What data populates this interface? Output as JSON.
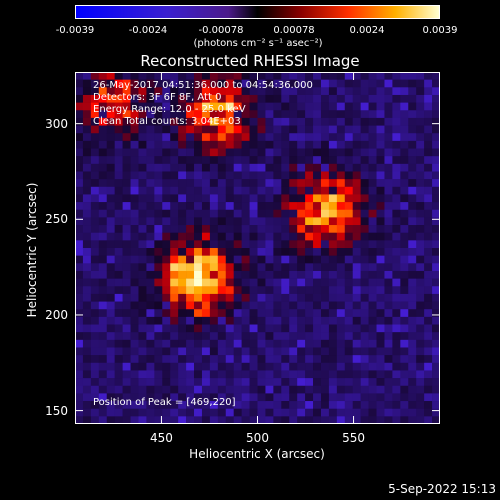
{
  "colorbar": {
    "ticks": [
      "-0.0039",
      "-0.0024",
      "-0.00078",
      "0.00078",
      "0.0024",
      "0.0039"
    ],
    "units": "(photons cm⁻² s⁻¹ asec⁻²)",
    "min": -0.0039,
    "max": 0.0039
  },
  "chart_data": {
    "type": "heatmap",
    "title": "Reconstructed RHESSI Image",
    "xlabel": "Heliocentric X (arcsec)",
    "ylabel": "Heliocentric Y (arcsec)",
    "xlim": [
      405,
      595
    ],
    "ylim": [
      143,
      327
    ],
    "xticks": [
      450,
      500,
      550
    ],
    "yticks": [
      150,
      200,
      250,
      300
    ],
    "sources": [
      {
        "x": 469,
        "y": 220,
        "peak": 1.0
      },
      {
        "x": 535,
        "y": 255,
        "peak": 0.8
      },
      {
        "x": 480,
        "y": 305,
        "peak": 0.75
      },
      {
        "x": 425,
        "y": 310,
        "peak": 0.55
      }
    ],
    "annotations": {
      "line1": "26-May-2017 04:51:36.000 to 04:54:36.000",
      "line2": "Detectors: 3F 6F 8F, Att 0",
      "line3": "Energy Range: 12.0 - 25.0 keV",
      "line4": "Clean    Total counts: 3.04E+03",
      "peak": "Position of Peak = [469,220]"
    }
  },
  "timestamp": "5-Sep-2022 15:13"
}
